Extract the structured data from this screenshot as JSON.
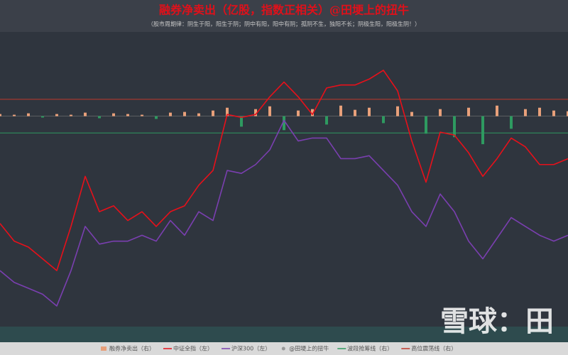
{
  "chart_data": {
    "type": "line",
    "title": "融券净卖出（亿股，指数正相关）@田埂上的扭牛",
    "subtitle": "（股市周期律：阴生于阳，阳生于阴；阴中有阳，阳中有阴；孤阴不生，独阳不长；阴极生阳，阳极生阴！）",
    "watermark": "雪球：田",
    "categories": [
      null,
      null,
      null,
      null,
      null,
      null,
      null,
      null,
      null,
      null,
      null,
      null,
      null,
      null,
      null,
      null,
      null,
      null,
      null,
      null,
      null,
      null,
      null,
      null,
      null,
      null,
      null,
      null,
      null,
      null,
      null,
      null,
      null,
      null,
      null,
      null,
      null,
      null,
      null,
      null,
      null
    ],
    "ylim": [
      0,
      100
    ],
    "y2lim": [
      -300,
      120
    ],
    "series": [
      {
        "name": "融券净卖出（右）",
        "type": "bar",
        "axis": "y2",
        "color": "#e8a07a",
        "negative_color": "#2e9a60",
        "values": [
          3,
          2,
          4,
          -2,
          3,
          2,
          5,
          -3,
          4,
          3,
          2,
          -4,
          5,
          6,
          4,
          8,
          12,
          -15,
          10,
          14,
          -20,
          8,
          10,
          -12,
          15,
          9,
          12,
          -10,
          14,
          6,
          -25,
          10,
          -30,
          12,
          -40,
          15,
          -18,
          10,
          12,
          8,
          7
        ]
      },
      {
        "name": "中证全指（左）",
        "color": "#e8101a",
        "values": [
          35,
          29,
          27,
          23,
          19,
          34,
          51,
          39,
          41,
          36,
          39,
          34,
          39,
          41,
          48,
          53,
          72,
          71,
          72,
          78,
          83,
          78,
          72,
          81,
          82,
          82,
          84,
          87,
          80,
          63,
          49,
          66,
          65,
          59,
          51,
          57,
          64,
          61,
          55,
          55,
          57
        ]
      },
      {
        "name": "沪深300（左）",
        "color": "#7a3fb0",
        "values": [
          19,
          15,
          13,
          11,
          7,
          19,
          34,
          28,
          29,
          29,
          31,
          29,
          36,
          31,
          39,
          36,
          53,
          52,
          55,
          60,
          70,
          63,
          64,
          64,
          57,
          57,
          58,
          53,
          48,
          39,
          34,
          45,
          39,
          29,
          23,
          30,
          37,
          34,
          31,
          29,
          31
        ]
      }
    ],
    "legend_note": "@田埂上的扭牛",
    "reference_lines": [
      {
        "name": "波段抢筹线（右）",
        "value": -24,
        "color": "#2e9a60"
      },
      {
        "name": "高位震荡线（右）",
        "value": 24,
        "color": "#c0392b"
      }
    ]
  }
}
